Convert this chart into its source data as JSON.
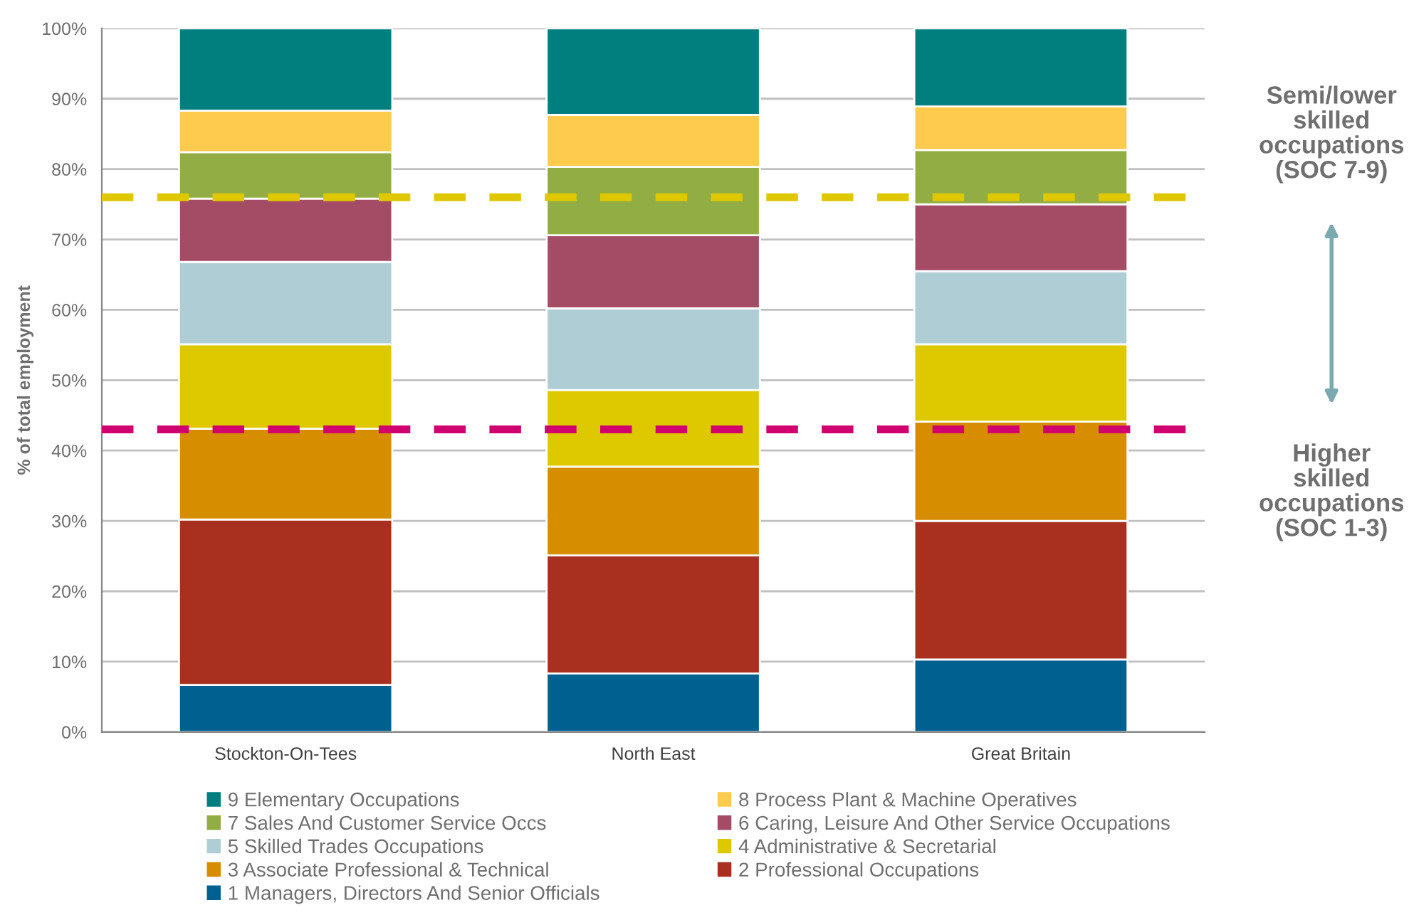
{
  "chart_data": {
    "type": "bar",
    "stacked": true,
    "categories": [
      "Stockton-On-Tees",
      "North East",
      "Great Britain"
    ],
    "ylabel": "% of total employment",
    "ylim": [
      0,
      100
    ],
    "yticks": [
      {
        "value": 0,
        "label": "0%"
      },
      {
        "value": 10,
        "label": "10%"
      },
      {
        "value": 20,
        "label": "20%"
      },
      {
        "value": 30,
        "label": "30%"
      },
      {
        "value": 40,
        "label": "40%"
      },
      {
        "value": 50,
        "label": "50%"
      },
      {
        "value": 60,
        "label": "60%"
      },
      {
        "value": 70,
        "label": "70%"
      },
      {
        "value": 80,
        "label": "80%"
      },
      {
        "value": 90,
        "label": "90%"
      },
      {
        "value": 100,
        "label": "100%"
      }
    ],
    "grid": "y",
    "legend": "bottom",
    "series": [
      {
        "name": "1 Managers, Directors And Senior Officials",
        "color": "#00608f",
        "values": [
          6.7,
          8.3,
          10.3
        ]
      },
      {
        "name": "2 Professional Occupations",
        "color": "#a92f1f",
        "values": [
          23.5,
          16.8,
          19.7
        ]
      },
      {
        "name": "3 Associate Professional & Technical",
        "color": "#d68d00",
        "values": [
          12.9,
          12.6,
          14.1
        ]
      },
      {
        "name": "4 Administrative & Secretarial",
        "color": "#dec800",
        "values": [
          12.0,
          10.9,
          11.0
        ]
      },
      {
        "name": "5 Skilled Trades Occupations",
        "color": "#afcdd4",
        "values": [
          11.7,
          11.6,
          10.4
        ]
      },
      {
        "name": "6 Caring, Leisure And Other Service Occupations",
        "color": "#a44c66",
        "values": [
          9.0,
          10.4,
          9.5
        ]
      },
      {
        "name": "7 Sales And Customer Service Occs",
        "color": "#92ad44",
        "values": [
          6.6,
          9.7,
          7.7
        ]
      },
      {
        "name": "8 Process Plant & Machine Operatives",
        "color": "#fecb4e",
        "values": [
          5.9,
          7.4,
          6.2
        ]
      },
      {
        "name": "9 Elementary Occupations",
        "color": "#007f7e",
        "values": [
          11.7,
          12.3,
          11.1
        ]
      }
    ],
    "ref_lines": [
      {
        "axis": "y",
        "value": 76,
        "label": "Semi/lower\nskilled\noccupations\n(SOC 7-9)",
        "color": "#e0c800",
        "line_style": "dashed"
      },
      {
        "axis": "y",
        "value": 43,
        "label": "Higher\nskilled\noccupations\n(SOC 1-3)",
        "color": "#d0006f",
        "line_style": "dashed"
      }
    ]
  }
}
